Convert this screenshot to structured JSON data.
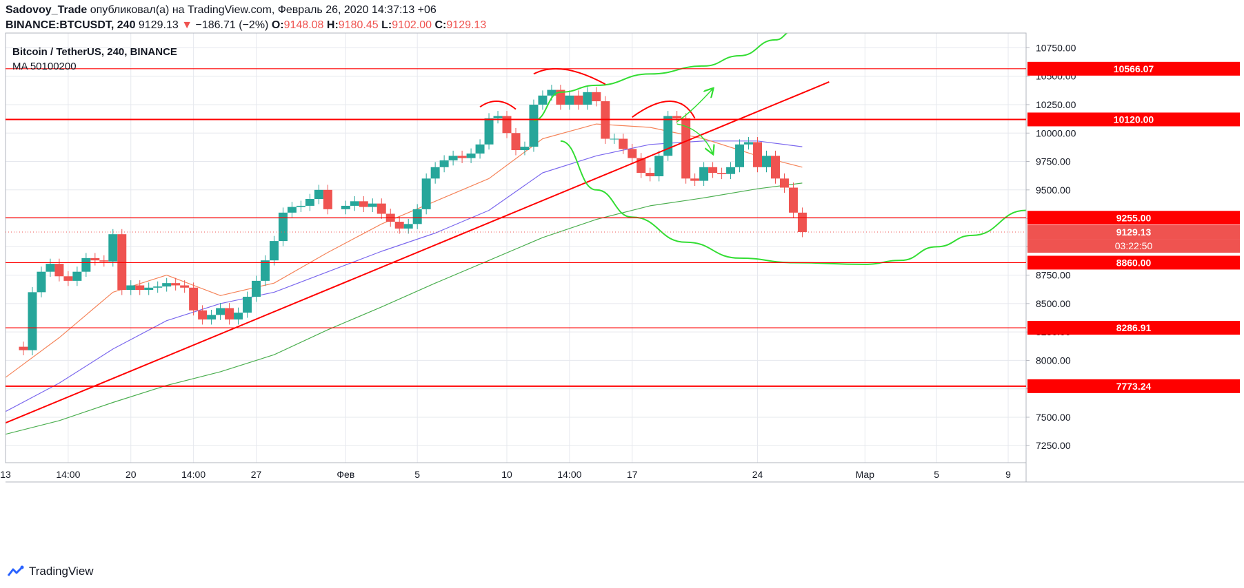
{
  "header": {
    "author": "Sadovoy_Trade",
    "published": "опубликовал(а) на TradingView.com, Февраль 26, 2020 14:37:13 +06",
    "symbol": "BINANCE:BTCUSDT, 240",
    "last": "9129.13",
    "change": "−186.71 (−2%)",
    "o_label": "O:",
    "o": "9148.08",
    "h_label": "H:",
    "h": "9180.45",
    "l_label": "L:",
    "l": "9102.00",
    "c_label": "C:",
    "c": "9129.13"
  },
  "legend": {
    "title": "Bitcoin / TetherUS, 240, BINANCE",
    "indicator": "MA 50100200"
  },
  "footer": {
    "brand": "TradingView"
  },
  "colors": {
    "up": "#26a69a",
    "down": "#ef5350",
    "red_line": "#ff0000",
    "green_line": "#33dd33",
    "ma50": "#f5845a",
    "ma100": "#7b68ee",
    "ma200": "#4caf50",
    "grid": "#e6e8ee",
    "axis_text": "#131722"
  },
  "chart_data": {
    "type": "candlestick",
    "ylim": [
      7100,
      10880
    ],
    "y_ticks": [
      7250,
      7500,
      7750,
      8000,
      8250,
      8500,
      8750,
      9000,
      9250,
      9500,
      9750,
      10000,
      10250,
      10500,
      10750
    ],
    "y_tick_labels": [
      "7250.00",
      "7500.00",
      "7750.00",
      "8000.00",
      "8250.00",
      "8500.00",
      "8750.00",
      "9000.00",
      "9250.00",
      "9500.00",
      "9750.00",
      "10000.00",
      "10250.00",
      "10500.00",
      "10750.00"
    ],
    "x_range": [
      "2020-01-13",
      "2020-03-10"
    ],
    "x_ticks": [
      {
        "t": "2020-01-13 00:00",
        "label": "13"
      },
      {
        "t": "2020-01-16 12:00",
        "label": "14:00"
      },
      {
        "t": "2020-01-20 00:00",
        "label": "20"
      },
      {
        "t": "2020-01-23 12:00",
        "label": "14:00"
      },
      {
        "t": "2020-01-27 00:00",
        "label": "27"
      },
      {
        "t": "2020-02-01 00:00",
        "label": "Фев"
      },
      {
        "t": "2020-02-05 00:00",
        "label": "5"
      },
      {
        "t": "2020-02-10 00:00",
        "label": "10"
      },
      {
        "t": "2020-02-13 12:00",
        "label": "14:00"
      },
      {
        "t": "2020-02-17 00:00",
        "label": "17"
      },
      {
        "t": "2020-02-24 00:00",
        "label": "24"
      },
      {
        "t": "2020-03-01 00:00",
        "label": "Мар"
      },
      {
        "t": "2020-03-05 00:00",
        "label": "5"
      },
      {
        "t": "2020-03-09 00:00",
        "label": "9"
      }
    ],
    "price_series": [
      [
        "2020-01-13",
        8120
      ],
      [
        "2020-01-14",
        8090
      ],
      [
        "2020-01-14 12:00",
        8600
      ],
      [
        "2020-01-15",
        8780
      ],
      [
        "2020-01-15 12:00",
        8850
      ],
      [
        "2020-01-16",
        8740
      ],
      [
        "2020-01-16 12:00",
        8700
      ],
      [
        "2020-01-17",
        8780
      ],
      [
        "2020-01-17 12:00",
        8900
      ],
      [
        "2020-01-18",
        8880
      ],
      [
        "2020-01-18 12:00",
        8870
      ],
      [
        "2020-01-19",
        9110
      ],
      [
        "2020-01-19 12:00",
        8620
      ],
      [
        "2020-01-20",
        8660
      ],
      [
        "2020-01-20 12:00",
        8620
      ],
      [
        "2020-01-21",
        8640
      ],
      [
        "2020-01-21 12:00",
        8650
      ],
      [
        "2020-01-22",
        8680
      ],
      [
        "2020-01-22 12:00",
        8660
      ],
      [
        "2020-01-23",
        8640
      ],
      [
        "2020-01-23 12:00",
        8440
      ],
      [
        "2020-01-24",
        8360
      ],
      [
        "2020-01-24 12:00",
        8400
      ],
      [
        "2020-01-25",
        8460
      ],
      [
        "2020-01-25 12:00",
        8360
      ],
      [
        "2020-01-26",
        8420
      ],
      [
        "2020-01-26 12:00",
        8560
      ],
      [
        "2020-01-27",
        8700
      ],
      [
        "2020-01-27 12:00",
        8880
      ],
      [
        "2020-01-28",
        9050
      ],
      [
        "2020-01-28 12:00",
        9300
      ],
      [
        "2020-01-29",
        9350
      ],
      [
        "2020-01-29 12:00",
        9360
      ],
      [
        "2020-01-30",
        9420
      ],
      [
        "2020-01-30 12:00",
        9500
      ],
      [
        "2020-01-31",
        9330
      ],
      [
        "2020-02-01",
        9360
      ],
      [
        "2020-02-01 12:00",
        9400
      ],
      [
        "2020-02-02",
        9350
      ],
      [
        "2020-02-02 12:00",
        9380
      ],
      [
        "2020-02-03",
        9290
      ],
      [
        "2020-02-03 12:00",
        9220
      ],
      [
        "2020-02-04",
        9160
      ],
      [
        "2020-02-04 12:00",
        9200
      ],
      [
        "2020-02-05",
        9330
      ],
      [
        "2020-02-05 12:00",
        9600
      ],
      [
        "2020-02-06",
        9700
      ],
      [
        "2020-02-06 12:00",
        9760
      ],
      [
        "2020-02-07",
        9800
      ],
      [
        "2020-02-07 12:00",
        9780
      ],
      [
        "2020-02-08",
        9820
      ],
      [
        "2020-02-08 12:00",
        9900
      ],
      [
        "2020-02-09",
        10130
      ],
      [
        "2020-02-09 12:00",
        10150
      ],
      [
        "2020-02-10",
        10000
      ],
      [
        "2020-02-10 12:00",
        9850
      ],
      [
        "2020-02-11",
        9880
      ],
      [
        "2020-02-11 12:00",
        10250
      ],
      [
        "2020-02-12",
        10330
      ],
      [
        "2020-02-12 12:00",
        10380
      ],
      [
        "2020-02-13",
        10250
      ],
      [
        "2020-02-13 12:00",
        10330
      ],
      [
        "2020-02-14",
        10250
      ],
      [
        "2020-02-14 12:00",
        10360
      ],
      [
        "2020-02-15",
        10280
      ],
      [
        "2020-02-15 12:00",
        9950
      ],
      [
        "2020-02-16",
        9950
      ],
      [
        "2020-02-16 12:00",
        9860
      ],
      [
        "2020-02-17",
        9780
      ],
      [
        "2020-02-17 12:00",
        9650
      ],
      [
        "2020-02-18",
        9620
      ],
      [
        "2020-02-18 12:00",
        9800
      ],
      [
        "2020-02-19",
        10150
      ],
      [
        "2020-02-19 12:00",
        10130
      ],
      [
        "2020-02-20",
        9600
      ],
      [
        "2020-02-20 12:00",
        9580
      ],
      [
        "2020-02-21",
        9700
      ],
      [
        "2020-02-21 12:00",
        9650
      ],
      [
        "2020-02-22",
        9640
      ],
      [
        "2020-02-22 12:00",
        9700
      ],
      [
        "2020-02-23",
        9900
      ],
      [
        "2020-02-23 12:00",
        9920
      ],
      [
        "2020-02-24",
        9700
      ],
      [
        "2020-02-24 12:00",
        9800
      ],
      [
        "2020-02-25",
        9600
      ],
      [
        "2020-02-25 12:00",
        9520
      ],
      [
        "2020-02-26",
        9300
      ],
      [
        "2020-02-26 12:00",
        9129
      ]
    ],
    "ma50": [
      [
        "2020-01-13",
        7850
      ],
      [
        "2020-01-16",
        8200
      ],
      [
        "2020-01-19",
        8600
      ],
      [
        "2020-01-22",
        8750
      ],
      [
        "2020-01-25",
        8570
      ],
      [
        "2020-01-28",
        8680
      ],
      [
        "2020-01-31",
        8950
      ],
      [
        "2020-02-03",
        9200
      ],
      [
        "2020-02-06",
        9400
      ],
      [
        "2020-02-09",
        9600
      ],
      [
        "2020-02-12",
        9950
      ],
      [
        "2020-02-15",
        10080
      ],
      [
        "2020-02-18",
        10050
      ],
      [
        "2020-02-21",
        9950
      ],
      [
        "2020-02-24",
        9800
      ],
      [
        "2020-02-26 12:00",
        9700
      ]
    ],
    "ma100": [
      [
        "2020-01-13",
        7550
      ],
      [
        "2020-01-16",
        7800
      ],
      [
        "2020-01-19",
        8100
      ],
      [
        "2020-01-22",
        8350
      ],
      [
        "2020-01-25",
        8500
      ],
      [
        "2020-01-28",
        8600
      ],
      [
        "2020-01-31",
        8780
      ],
      [
        "2020-02-03",
        8960
      ],
      [
        "2020-02-06",
        9120
      ],
      [
        "2020-02-09",
        9320
      ],
      [
        "2020-02-12",
        9650
      ],
      [
        "2020-02-15",
        9800
      ],
      [
        "2020-02-18",
        9900
      ],
      [
        "2020-02-21",
        9930
      ],
      [
        "2020-02-24",
        9930
      ],
      [
        "2020-02-26 12:00",
        9880
      ]
    ],
    "ma200": [
      [
        "2020-01-13",
        7350
      ],
      [
        "2020-01-16",
        7470
      ],
      [
        "2020-01-19",
        7630
      ],
      [
        "2020-01-22",
        7780
      ],
      [
        "2020-01-25",
        7900
      ],
      [
        "2020-01-28",
        8050
      ],
      [
        "2020-01-31",
        8270
      ],
      [
        "2020-02-03",
        8470
      ],
      [
        "2020-02-06",
        8680
      ],
      [
        "2020-02-09",
        8880
      ],
      [
        "2020-02-12",
        9080
      ],
      [
        "2020-02-15",
        9240
      ],
      [
        "2020-02-18",
        9360
      ],
      [
        "2020-02-21",
        9430
      ],
      [
        "2020-02-24",
        9510
      ],
      [
        "2020-02-26 12:00",
        9560
      ]
    ],
    "horizontal_levels": [
      {
        "price": 10566.07,
        "label": "10566.07",
        "bold": false
      },
      {
        "price": 10120.0,
        "label": "10120.00",
        "bold": true
      },
      {
        "price": 9255.0,
        "label": "9255.00",
        "bold": false
      },
      {
        "price": 8860.0,
        "label": "8860.00",
        "bold": false
      },
      {
        "price": 8286.91,
        "label": "8286.91",
        "bold": false
      },
      {
        "price": 7773.24,
        "label": "7773.24",
        "bold": true
      }
    ],
    "current_price": {
      "price": 9129.13,
      "label": "9129.13",
      "countdown": "03:22:50"
    },
    "trendline": {
      "from": [
        "2020-01-13",
        7450
      ],
      "to": [
        "2020-02-28",
        10450
      ]
    },
    "green_channel_upper": [
      [
        "2020-02-11 12:00",
        10110
      ],
      [
        "2020-02-13",
        10360
      ],
      [
        "2020-02-15",
        10420
      ],
      [
        "2020-02-18",
        10520
      ],
      [
        "2020-02-21",
        10590
      ],
      [
        "2020-02-23",
        10680
      ],
      [
        "2020-02-25",
        10820
      ],
      [
        "2020-02-26",
        10900
      ]
    ],
    "green_channel_lower": [
      [
        "2020-02-13",
        9930
      ],
      [
        "2020-02-15",
        9500
      ],
      [
        "2020-02-17",
        9260
      ],
      [
        "2020-02-20",
        9040
      ],
      [
        "2020-02-23",
        8900
      ],
      [
        "2020-02-26",
        8860
      ],
      [
        "2020-03-01",
        8845
      ],
      [
        "2020-03-03",
        8880
      ],
      [
        "2020-03-05",
        9000
      ],
      [
        "2020-03-07",
        9100
      ],
      [
        "2020-03-10",
        9320
      ]
    ],
    "arcs": [
      {
        "start": [
          "2020-02-08 12:00",
          10230
        ],
        "peak": [
          "2020-02-09 12:00",
          10280
        ],
        "end": [
          "2020-02-10 12:00",
          10210
        ]
      },
      {
        "start": [
          "2020-02-11 12:00",
          10520
        ],
        "peak": [
          "2020-02-13",
          10560
        ],
        "end": [
          "2020-02-15 12:00",
          10430
        ]
      },
      {
        "start": [
          "2020-02-17",
          10140
        ],
        "peak": [
          "2020-02-19 12:00",
          10280
        ],
        "end": [
          "2020-02-20 12:00",
          10130
        ]
      }
    ],
    "arrows": [
      {
        "from": [
          "2020-02-19 12:00",
          10100
        ],
        "to": [
          "2020-02-21 12:00",
          10390
        ]
      },
      {
        "from": [
          "2020-02-19 12:00",
          10080
        ],
        "to": [
          "2020-02-21 12:00",
          9820
        ]
      }
    ]
  }
}
